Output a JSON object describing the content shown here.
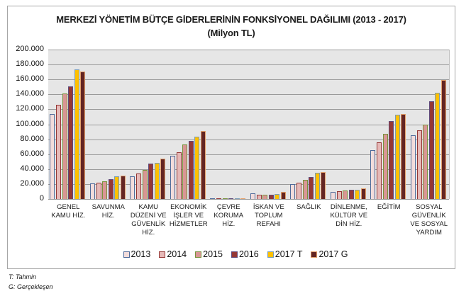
{
  "title_line1": "MERKEZİ YÖNETİM BÜTÇE GİDERLERİNİN FONKSİYONEL DAĞILIMI (2013 - 2017)",
  "title_line2": "(Milyon TL)",
  "notes": {
    "t": "T: Tahmin",
    "g": "G: Gerçekleşen"
  },
  "y_ticks": [
    "0",
    "20.000",
    "40.000",
    "60.000",
    "80.000",
    "100.000",
    "120.000",
    "140.000",
    "160.000",
    "180.000",
    "200.000"
  ],
  "chart_data": {
    "type": "bar",
    "title": "MERKEZİ YÖNETİM BÜTÇE GİDERLERİNİN FONKSİYONEL DAĞILIMI (2013 - 2017) (Milyon TL)",
    "xlabel": "",
    "ylabel": "Milyon TL",
    "ylim": [
      0,
      200000
    ],
    "grid": true,
    "legend_position": "bottom",
    "categories": [
      "GENEL KAMU HİZ.",
      "SAVUNMA HİZ.",
      "KAMU DÜZENİ VE GÜVENLİK HİZ.",
      "EKONOMİK İŞLER VE HİZMETLER",
      "ÇEVRE KORUMA HİZ.",
      "İSKAN VE TOPLUM REFAHI",
      "SAĞLIK",
      "DİNLENME, KÜLTÜR VE DİN HİZ.",
      "EĞİTİM",
      "SOSYAL GÜVENLİK VE SOSYAL YARDIM"
    ],
    "category_lines": [
      [
        "GENEL",
        "KAMU HİZ."
      ],
      [
        "SAVUNMA",
        "HİZ."
      ],
      [
        "KAMU",
        "DÜZENİ VE",
        "GÜVENLİK",
        "HİZ."
      ],
      [
        "EKONOMİK",
        "İŞLER VE",
        "HİZMETLER"
      ],
      [
        "ÇEVRE",
        "KORUMA",
        "HİZ."
      ],
      [
        "İSKAN VE",
        "TOPLUM",
        "REFAHI"
      ],
      [
        "SAĞLIK"
      ],
      [
        "DİNLENME,",
        "KÜLTÜR VE",
        "DİN HİZ."
      ],
      [
        "EĞİTİM"
      ],
      [
        "SOSYAL",
        "GÜVENLİK",
        "VE SOSYAL",
        "YARDIM"
      ]
    ],
    "series": [
      {
        "name": "2013",
        "color": "#F2DCDB",
        "border": "#4F6B9A",
        "values": [
          114000,
          20500,
          30000,
          58000,
          1000,
          7600,
          20000,
          9500,
          65400,
          85600
        ]
      },
      {
        "name": "2014",
        "color": "#E6B9B8",
        "border": "#953735",
        "values": [
          126000,
          21800,
          34400,
          62600,
          1000,
          6000,
          22000,
          10700,
          75800,
          92000
        ]
      },
      {
        "name": "2015",
        "color": "#D99694",
        "border": "#77933C",
        "values": [
          141500,
          23400,
          39000,
          73300,
          1000,
          6000,
          25600,
          11700,
          86900,
          100000
        ]
      },
      {
        "name": "2016",
        "color": "#953735",
        "border": "#604A7B",
        "values": [
          150400,
          26800,
          47400,
          78000,
          1000,
          6000,
          29000,
          12300,
          104300,
          131000
        ]
      },
      {
        "name": "2017 T",
        "color": "#FFC000",
        "border": "#7A9CB5",
        "values": [
          173700,
          30000,
          48600,
          83700,
          1000,
          6600,
          34800,
          12000,
          112800,
          142000
        ]
      },
      {
        "name": "2017 G",
        "color": "#632523",
        "border": "#E3A06A",
        "values": [
          170600,
          31000,
          53600,
          91000,
          1000,
          9500,
          35700,
          14500,
          113400,
          159000
        ]
      }
    ]
  }
}
